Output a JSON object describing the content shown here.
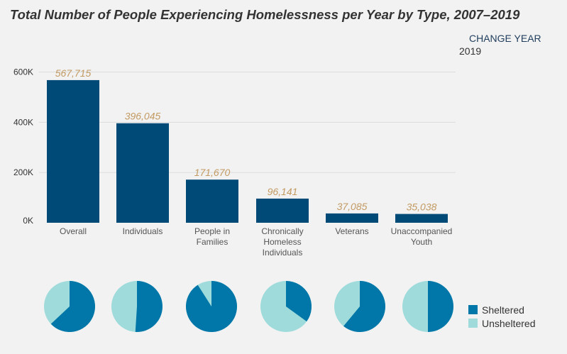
{
  "chart_data": [
    {
      "type": "bar",
      "title": "Total Number of People Experiencing Homelessness per Year by Type, 2007–2019",
      "categories": [
        "Overall",
        "Individuals",
        "People in Families",
        "Chronically Homeless Individuals",
        "Veterans",
        "Unaccompanied Youth"
      ],
      "category_lines": [
        [
          "Overall"
        ],
        [
          "Individuals"
        ],
        [
          "People in",
          "Families"
        ],
        [
          "Chronically",
          "Homeless",
          "Individuals"
        ],
        [
          "Veterans"
        ],
        [
          "Unaccompanied",
          "Youth"
        ]
      ],
      "values": [
        567715,
        396045,
        171670,
        96141,
        37085,
        35038
      ],
      "value_labels": [
        "567,715",
        "396,045",
        "171,670",
        "96,141",
        "37,085",
        "35,038"
      ],
      "ylim": [
        0,
        600000
      ],
      "yticks": [
        0,
        200000,
        400000,
        600000
      ],
      "ytick_labels": [
        "0K",
        "200K",
        "400K",
        "600K"
      ],
      "grid": true,
      "colors": {
        "bar": "#004a78",
        "value_label": "#c29a62"
      }
    },
    {
      "type": "pie",
      "categories": [
        "Overall",
        "Individuals",
        "People in Families",
        "Chronically Homeless Individuals",
        "Veterans",
        "Unaccompanied Youth"
      ],
      "series": [
        {
          "name": "Sheltered",
          "values": [
            0.63,
            0.51,
            0.91,
            0.35,
            0.61,
            0.5
          ],
          "color": "#0077a8"
        },
        {
          "name": "Unsheltered",
          "values": [
            0.37,
            0.49,
            0.09,
            0.65,
            0.39,
            0.5
          ],
          "color": "#9fdbdb"
        }
      ],
      "legend": "right"
    }
  ],
  "controls": {
    "change_year_label": "CHANGE YEAR",
    "year": "2019"
  }
}
